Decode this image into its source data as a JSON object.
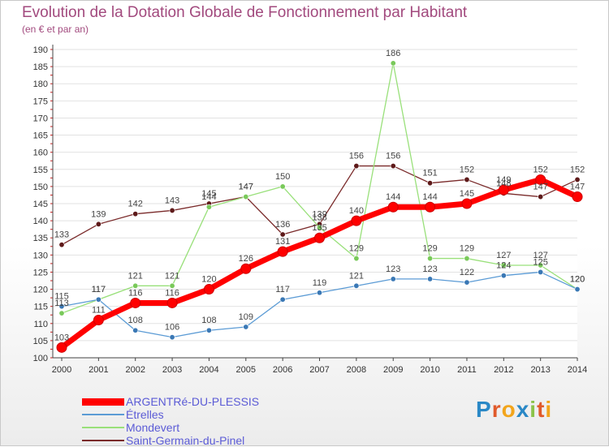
{
  "chart_data": {
    "type": "line",
    "title": "Evolution de la Dotation Globale de Fonctionnement par Habitant",
    "subtitle": "(en € et par an)",
    "xlabel": "",
    "ylabel": "",
    "ylim": [
      100,
      190
    ],
    "y_ticks": [
      100,
      105,
      110,
      115,
      120,
      125,
      130,
      135,
      140,
      145,
      150,
      155,
      160,
      165,
      170,
      175,
      180,
      185,
      190
    ],
    "categories": [
      "2000",
      "2001",
      "2002",
      "2003",
      "2004",
      "2005",
      "2006",
      "2007",
      "2008",
      "2009",
      "2010",
      "2011",
      "2012",
      "2013",
      "2014"
    ],
    "series": [
      {
        "name": "ARGENTRé-DU-PLESSIS",
        "color": "#ff0000",
        "marker_color": "#ff0000",
        "values": [
          103,
          111,
          116,
          116,
          120,
          126,
          131,
          135,
          140,
          144,
          144,
          145,
          149,
          152,
          147
        ]
      },
      {
        "name": "Étrelles",
        "color": "#5b9bd5",
        "marker_color": "#3a78b5",
        "values": [
          115,
          117,
          108,
          106,
          108,
          109,
          117,
          119,
          121,
          123,
          123,
          122,
          124,
          125,
          120
        ]
      },
      {
        "name": "Mondevert",
        "color": "#99e07a",
        "marker_color": "#79c95a",
        "values": [
          113,
          117,
          121,
          121,
          144,
          147,
          150,
          138,
          129,
          186,
          129,
          129,
          127,
          127,
          120
        ]
      },
      {
        "name": "Saint-Germain-du-Pinel",
        "color": "#7a2a2a",
        "marker_color": "#5e1a1a",
        "values": [
          133,
          139,
          142,
          143,
          145,
          147,
          136,
          139,
          156,
          156,
          151,
          152,
          148,
          147,
          152
        ]
      }
    ],
    "legend_position": "bottom-left"
  },
  "logo": {
    "text": "Proxiti"
  }
}
